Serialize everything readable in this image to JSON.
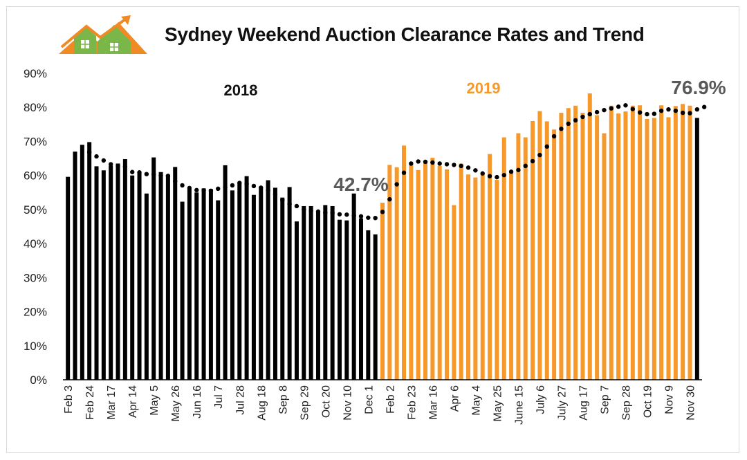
{
  "title": "Sydney Weekend Auction Clearance Rates and Trend",
  "logo_icon": "house-roof-arrow-icon",
  "colors": {
    "y2018": "#000000",
    "y2019": "#f7982a",
    "trend": "#000000",
    "callout": "#595959",
    "logo_green": "#7ab648",
    "logo_orange": "#f08a24"
  },
  "chart_data": {
    "type": "bar",
    "title": "Sydney Weekend Auction Clearance Rates and Trend",
    "xlabel": "",
    "ylabel": "",
    "ylim": [
      0,
      90
    ],
    "yticks": [
      "0%",
      "10%",
      "20%",
      "30%",
      "40%",
      "50%",
      "60%",
      "70%",
      "80%",
      "90%"
    ],
    "grid": false,
    "x_tick_labels": [
      "Feb 3",
      "Feb 24",
      "Mar 17",
      "Apr 14",
      "May 5",
      "May 26",
      "Jun 16",
      "Jul 7",
      "Jul 28",
      "Aug 18",
      "Sep 8",
      "Sep 29",
      "Oct 20",
      "Nov 10",
      "Dec 1",
      "Feb 2",
      "Feb 23",
      "Mar 16",
      "Apr 6",
      "May 4",
      "May 25",
      "June 15",
      "July 6",
      "July 27",
      "Aug 17",
      "Sep 7",
      "Sep 28",
      "Oct 19",
      "Nov 9",
      "Nov 30"
    ],
    "year_labels": [
      "2018",
      "2019"
    ],
    "callouts": [
      "42.7%",
      "76.9%"
    ],
    "series": [
      {
        "name": "2018",
        "values": [
          59.6,
          67.0,
          69.0,
          69.8,
          62.7,
          61.5,
          62.9,
          63.5,
          64.8,
          60.0,
          61.0,
          54.7,
          65.3,
          61.0,
          60.0,
          62.5,
          52.3,
          56.0,
          55.0,
          56.2,
          56.0,
          52.7,
          63.0,
          55.6,
          57.6,
          59.8,
          54.3,
          56.6,
          58.6,
          56.4,
          53.5,
          56.6,
          46.5,
          51.0,
          51.0,
          49.3,
          51.3,
          51.0,
          47.0,
          46.8,
          54.7,
          47.4,
          43.9,
          42.7
        ]
      },
      {
        "name": "2019",
        "values": [
          52.0,
          63.1,
          62.4,
          68.8,
          63.4,
          61.6,
          64.2,
          65.2,
          62.8,
          61.8,
          51.3,
          63.5,
          60.3,
          59.4,
          60.8,
          66.3,
          58.7,
          71.2,
          61.4,
          72.4,
          71.2,
          76.0,
          78.9,
          75.9,
          73.5,
          78.4,
          79.8,
          80.5,
          78.4,
          84.1,
          77.7,
          72.4,
          80.5,
          78.2,
          78.8,
          80.5,
          80.6,
          76.6,
          76.9,
          80.6,
          77.1,
          80.4,
          81.0,
          80.5
        ]
      },
      {
        "name": "2018",
        "values": [
          76.9
        ]
      },
      {
        "name": "Trend",
        "values": [
          null,
          null,
          null,
          66.8,
          65.6,
          64.4,
          63.3,
          62.8,
          62.6,
          61.0,
          60.9,
          60.4,
          60.3,
          60.0,
          59.9,
          58.3,
          57.1,
          56.3,
          55.7,
          55.6,
          55.5,
          56.1,
          56.5,
          57.1,
          57.8,
          57.5,
          56.9,
          56.4,
          55.6,
          54.5,
          52.8,
          51.6,
          51.0,
          50.0,
          49.6,
          49.4,
          49.1,
          49.0,
          48.6,
          48.5,
          48.2,
          48.0,
          47.6,
          47.5,
          49.3,
          53.0,
          57.4,
          60.8,
          63.5,
          64.1,
          64.0,
          63.8,
          63.5,
          63.3,
          63.1,
          62.8,
          62.3,
          61.5,
          60.6,
          59.8,
          59.5,
          60.1,
          61.1,
          61.6,
          62.8,
          64.2,
          66.0,
          68.5,
          71.5,
          73.7,
          75.2,
          76.2,
          77.2,
          78.0,
          78.6,
          79.2,
          79.7,
          80.2,
          80.6,
          79.5,
          78.5,
          78.0,
          78.1,
          79.0,
          79.4,
          79.0,
          78.4,
          78.3,
          79.4,
          80.1
        ]
      }
    ]
  }
}
